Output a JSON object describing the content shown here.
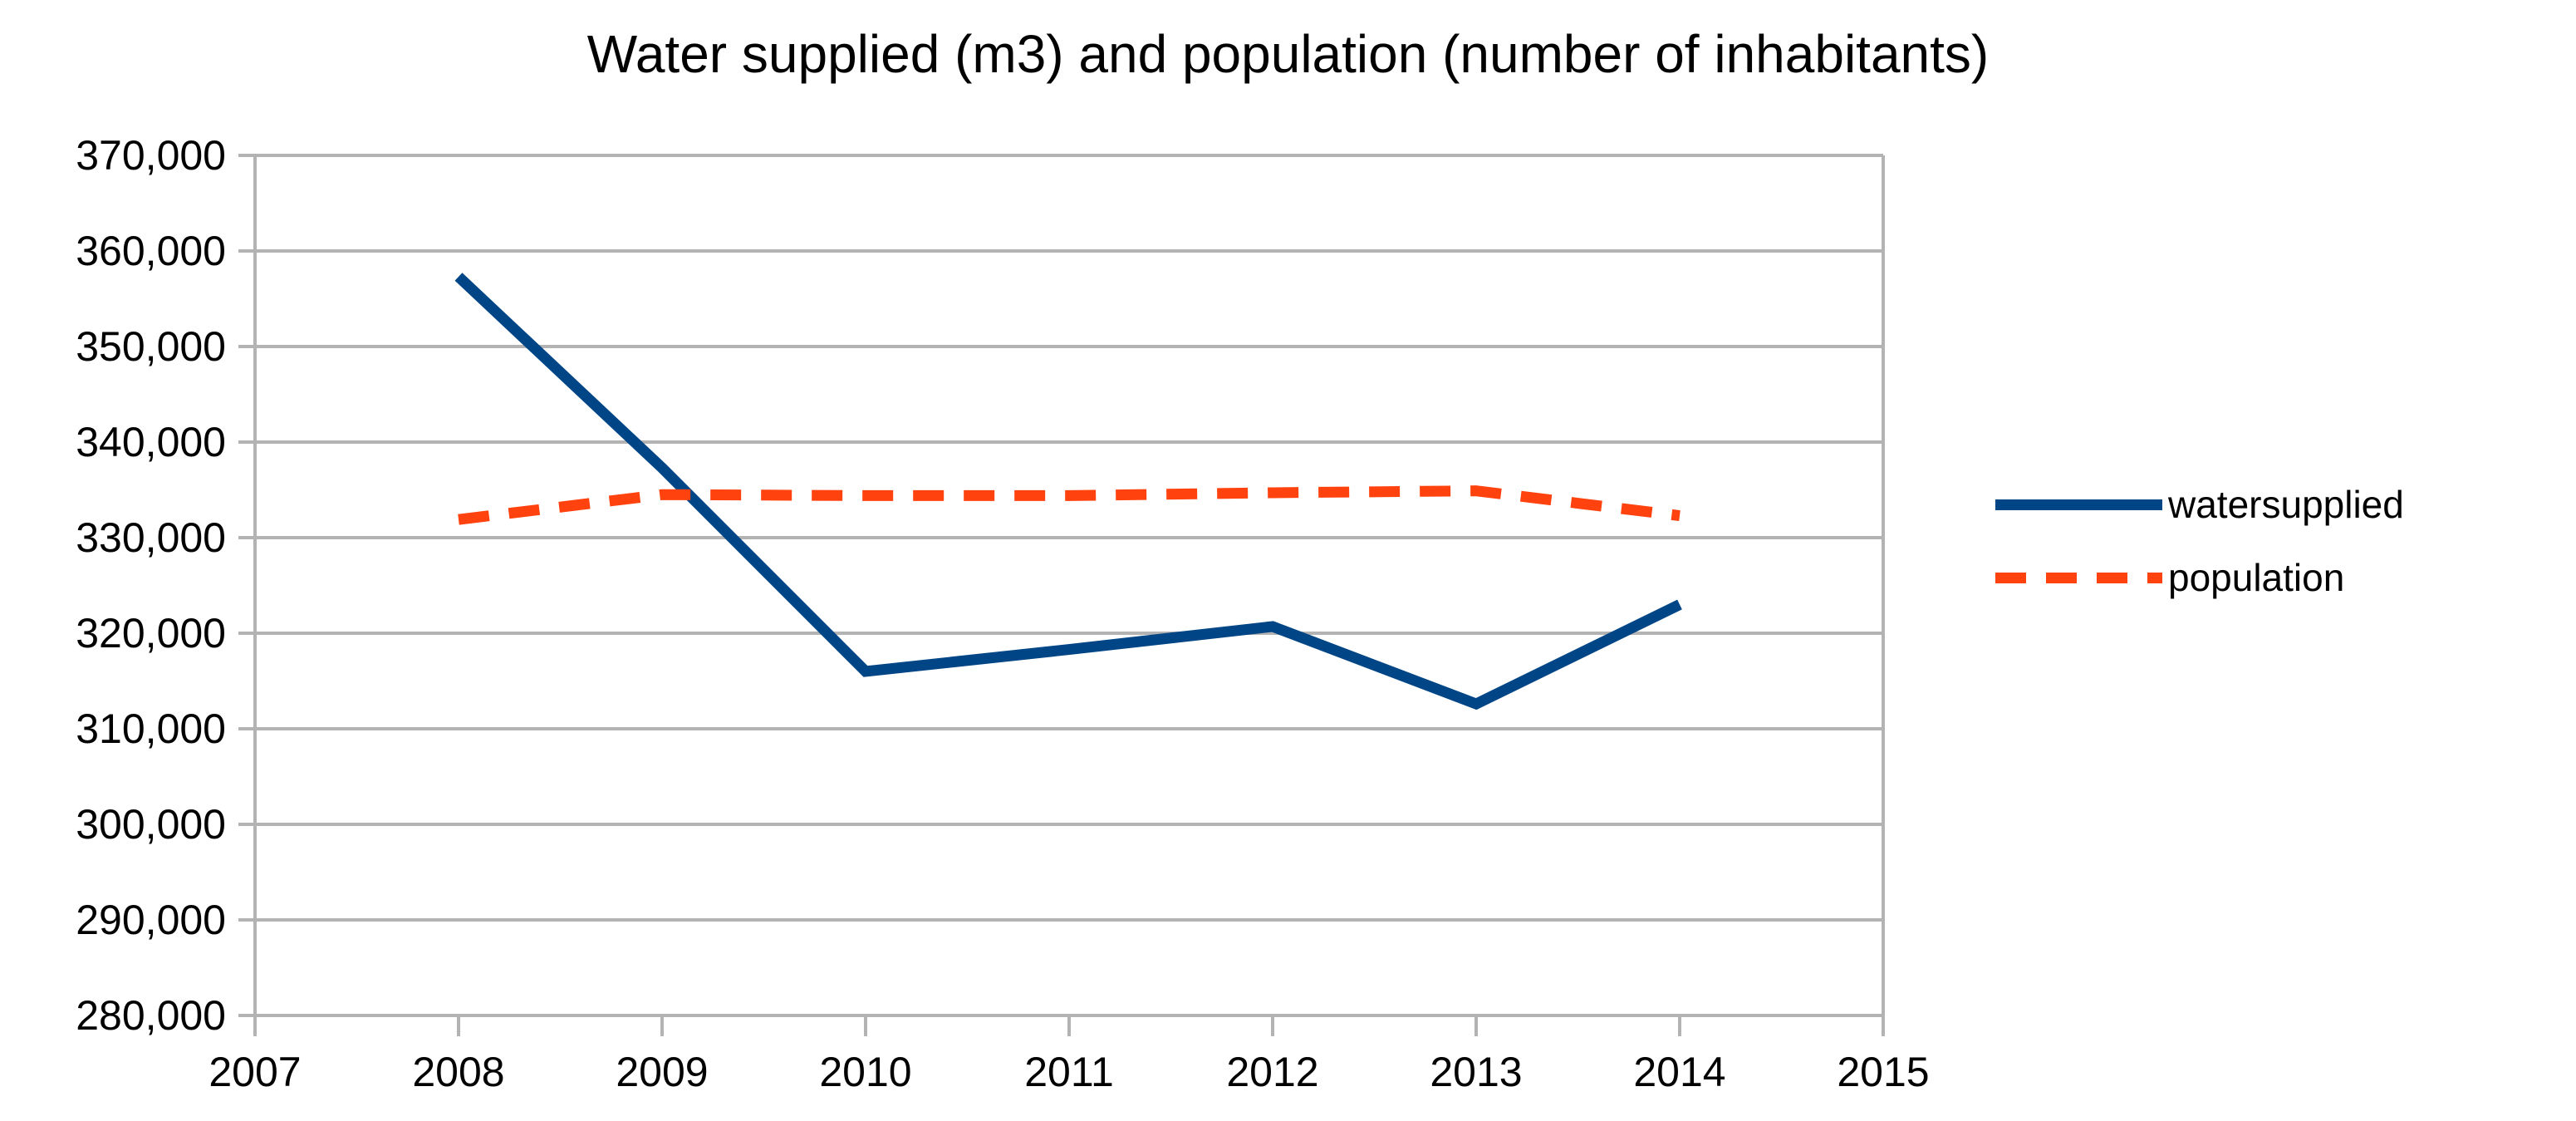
{
  "page": {
    "background_color": "#ffffff",
    "text_color": "#000000"
  },
  "chart_data": {
    "type": "line",
    "title": "Water supplied (m3) and population (number of inhabitants)",
    "x": [
      2008,
      2009,
      2010,
      2011,
      2012,
      2013,
      2014
    ],
    "series": [
      {
        "name": "watersupplied",
        "color": "#004586",
        "line_style": "solid",
        "values": [
          357300,
          337300,
          316000,
          318300,
          320700,
          312600,
          323000
        ]
      },
      {
        "name": "population",
        "color": "#FF420E",
        "line_style": "dashed",
        "values": [
          331900,
          334500,
          334400,
          334400,
          334700,
          334900,
          332300
        ]
      }
    ],
    "x_axis": {
      "range": [
        2007,
        2015
      ],
      "tick_labels": [
        "2007",
        "2008",
        "2009",
        "2010",
        "2011",
        "2012",
        "2013",
        "2014",
        "2015"
      ]
    },
    "y_axis": {
      "range": [
        280000,
        370000
      ],
      "tick_step": 10000,
      "tick_labels": [
        "280,000",
        "290,000",
        "300,000",
        "310,000",
        "320,000",
        "330,000",
        "340,000",
        "350,000",
        "360,000",
        "370,000"
      ]
    },
    "grid": {
      "horizontal": true,
      "vertical": false,
      "color": "#b3b3b3"
    },
    "axis_color": "#b3b3b3",
    "legend": {
      "position": "right"
    }
  }
}
